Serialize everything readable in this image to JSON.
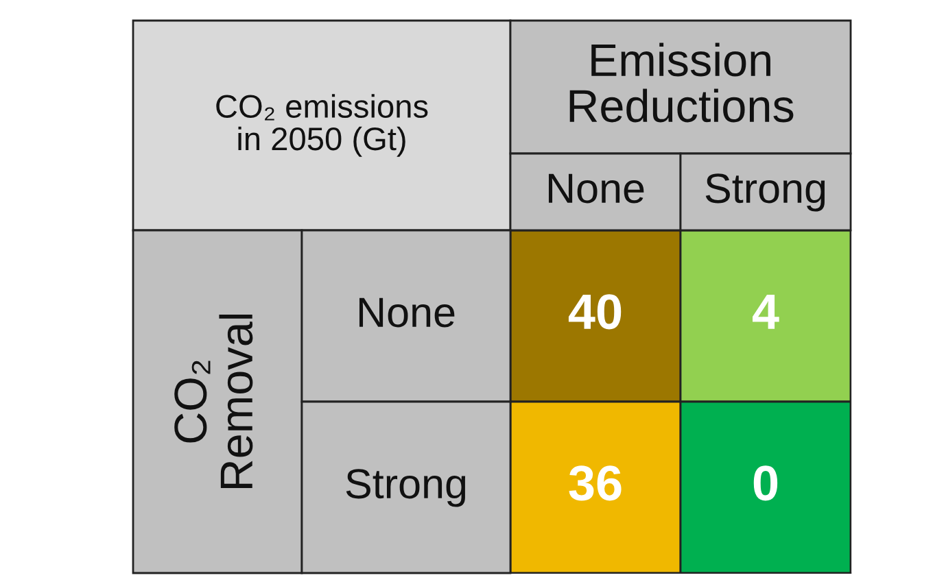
{
  "chart_data": {
    "type": "heatmap",
    "title": "CO₂ emissions\nin 2050 (Gt)",
    "xlabel": "Emission\nReductions",
    "ylabel": "CO₂\nRemoval",
    "categories": [
      "None",
      "Strong"
    ],
    "y_categories": [
      "None",
      "Strong"
    ],
    "cells": [
      [
        40,
        4
      ],
      [
        36,
        0
      ]
    ],
    "colors": [
      [
        "#9c7700",
        "#92d050"
      ],
      [
        "#f0b800",
        "#00b050"
      ]
    ],
    "data_labels": true
  }
}
